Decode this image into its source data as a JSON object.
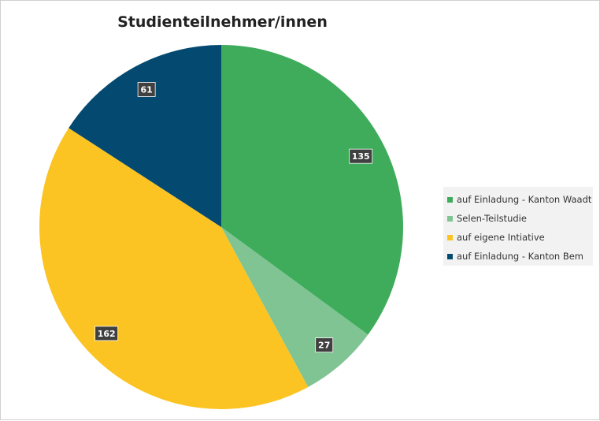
{
  "chart_data": {
    "type": "pie",
    "title": "Studienteilnehmer/innen",
    "categories": [
      "auf Einladung - Kanton Waadt",
      "Selen-Teilstudie",
      "auf eigene Intiative",
      "auf Einladung - Kanton Bem"
    ],
    "values": [
      135,
      27,
      162,
      61
    ],
    "colors": [
      "#3fac5b",
      "#7fc492",
      "#fbc423",
      "#044a70"
    ],
    "data_labels": [
      "135",
      "27",
      "162",
      "61"
    ],
    "legend_position": "right"
  }
}
